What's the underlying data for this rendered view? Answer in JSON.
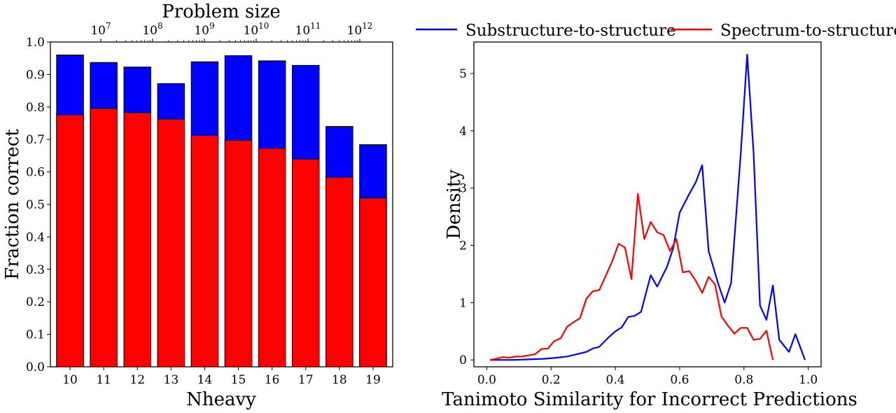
{
  "chart_data": [
    {
      "type": "bar",
      "stacked": "overlay",
      "categories": [
        "10",
        "11",
        "12",
        "13",
        "14",
        "15",
        "16",
        "17",
        "18",
        "19"
      ],
      "series": [
        {
          "name": "Substructure-to-structure",
          "color": "#0000ff",
          "values": [
            0.96,
            0.937,
            0.923,
            0.872,
            0.939,
            0.958,
            0.942,
            0.928,
            0.74,
            0.684
          ]
        },
        {
          "name": "Spectrum-to-structure",
          "color": "#ff0000",
          "values": [
            0.776,
            0.796,
            0.783,
            0.763,
            0.713,
            0.698,
            0.673,
            0.64,
            0.584,
            0.52
          ]
        }
      ],
      "xlabel": "Nheavy",
      "ylabel": "Fraction correct",
      "ylim": [
        0.0,
        1.0
      ],
      "yticks": [
        "0.0",
        "0.1",
        "0.2",
        "0.3",
        "0.4",
        "0.5",
        "0.6",
        "0.7",
        "0.8",
        "0.9",
        "1.0"
      ],
      "secondary_xlabel": "Problem size",
      "secondary_xticks": [
        {
          "base": "10",
          "exp": "7"
        },
        {
          "base": "10",
          "exp": "8"
        },
        {
          "base": "10",
          "exp": "9"
        },
        {
          "base": "10",
          "exp": "10"
        },
        {
          "base": "10",
          "exp": "11"
        },
        {
          "base": "10",
          "exp": "12"
        }
      ]
    },
    {
      "type": "line",
      "xlabel": "Tanimoto Similarity for Incorrect Predictions",
      "ylabel": "Density",
      "xlim": [
        -0.04,
        1.04
      ],
      "ylim": [
        -0.12,
        5.55
      ],
      "xticks": [
        "0.0",
        "0.2",
        "0.4",
        "0.6",
        "0.8",
        "1.0"
      ],
      "yticks": [
        "0",
        "1",
        "2",
        "3",
        "4",
        "5"
      ],
      "legend": "top-center",
      "series": [
        {
          "name": "Substructure-to-structure",
          "color": "#0000ff",
          "points": [
            [
              0.01,
              0.0
            ],
            [
              0.08,
              0.0
            ],
            [
              0.13,
              0.01
            ],
            [
              0.18,
              0.02
            ],
            [
              0.22,
              0.04
            ],
            [
              0.25,
              0.06
            ],
            [
              0.28,
              0.1
            ],
            [
              0.31,
              0.14
            ],
            [
              0.33,
              0.2
            ],
            [
              0.35,
              0.23
            ],
            [
              0.38,
              0.4
            ],
            [
              0.4,
              0.5
            ],
            [
              0.42,
              0.57
            ],
            [
              0.44,
              0.75
            ],
            [
              0.46,
              0.77
            ],
            [
              0.48,
              0.84
            ],
            [
              0.51,
              1.48
            ],
            [
              0.53,
              1.28
            ],
            [
              0.56,
              1.62
            ],
            [
              0.58,
              1.95
            ],
            [
              0.6,
              2.57
            ],
            [
              0.63,
              2.9
            ],
            [
              0.65,
              3.1
            ],
            [
              0.67,
              3.4
            ],
            [
              0.69,
              1.9
            ],
            [
              0.72,
              1.33
            ],
            [
              0.74,
              1.0
            ],
            [
              0.76,
              1.34
            ],
            [
              0.79,
              3.6
            ],
            [
              0.81,
              5.33
            ],
            [
              0.83,
              3.6
            ],
            [
              0.85,
              0.95
            ],
            [
              0.87,
              0.7
            ],
            [
              0.89,
              1.3
            ],
            [
              0.91,
              0.35
            ],
            [
              0.94,
              0.14
            ],
            [
              0.96,
              0.45
            ],
            [
              0.99,
              0.0
            ]
          ]
        },
        {
          "name": "Spectrum-to-structure",
          "color": "#ff0000",
          "points": [
            [
              0.01,
              0.0
            ],
            [
              0.03,
              0.02
            ],
            [
              0.05,
              0.05
            ],
            [
              0.07,
              0.04
            ],
            [
              0.09,
              0.06
            ],
            [
              0.11,
              0.06
            ],
            [
              0.13,
              0.08
            ],
            [
              0.15,
              0.1
            ],
            [
              0.17,
              0.19
            ],
            [
              0.19,
              0.2
            ],
            [
              0.21,
              0.33
            ],
            [
              0.23,
              0.38
            ],
            [
              0.25,
              0.58
            ],
            [
              0.27,
              0.66
            ],
            [
              0.29,
              0.73
            ],
            [
              0.31,
              1.07
            ],
            [
              0.33,
              1.2
            ],
            [
              0.35,
              1.22
            ],
            [
              0.37,
              1.47
            ],
            [
              0.39,
              1.72
            ],
            [
              0.41,
              2.03
            ],
            [
              0.43,
              1.96
            ],
            [
              0.45,
              1.41
            ],
            [
              0.47,
              2.9
            ],
            [
              0.49,
              2.11
            ],
            [
              0.51,
              2.41
            ],
            [
              0.53,
              2.23
            ],
            [
              0.55,
              2.18
            ],
            [
              0.57,
              1.9
            ],
            [
              0.59,
              2.11
            ],
            [
              0.61,
              1.53
            ],
            [
              0.63,
              1.55
            ],
            [
              0.65,
              1.38
            ],
            [
              0.67,
              1.17
            ],
            [
              0.69,
              1.45
            ],
            [
              0.71,
              1.32
            ],
            [
              0.73,
              0.76
            ],
            [
              0.75,
              0.6
            ],
            [
              0.77,
              0.46
            ],
            [
              0.79,
              0.56
            ],
            [
              0.81,
              0.56
            ],
            [
              0.83,
              0.35
            ],
            [
              0.85,
              0.37
            ],
            [
              0.87,
              0.51
            ],
            [
              0.89,
              0.0
            ]
          ]
        }
      ]
    }
  ]
}
